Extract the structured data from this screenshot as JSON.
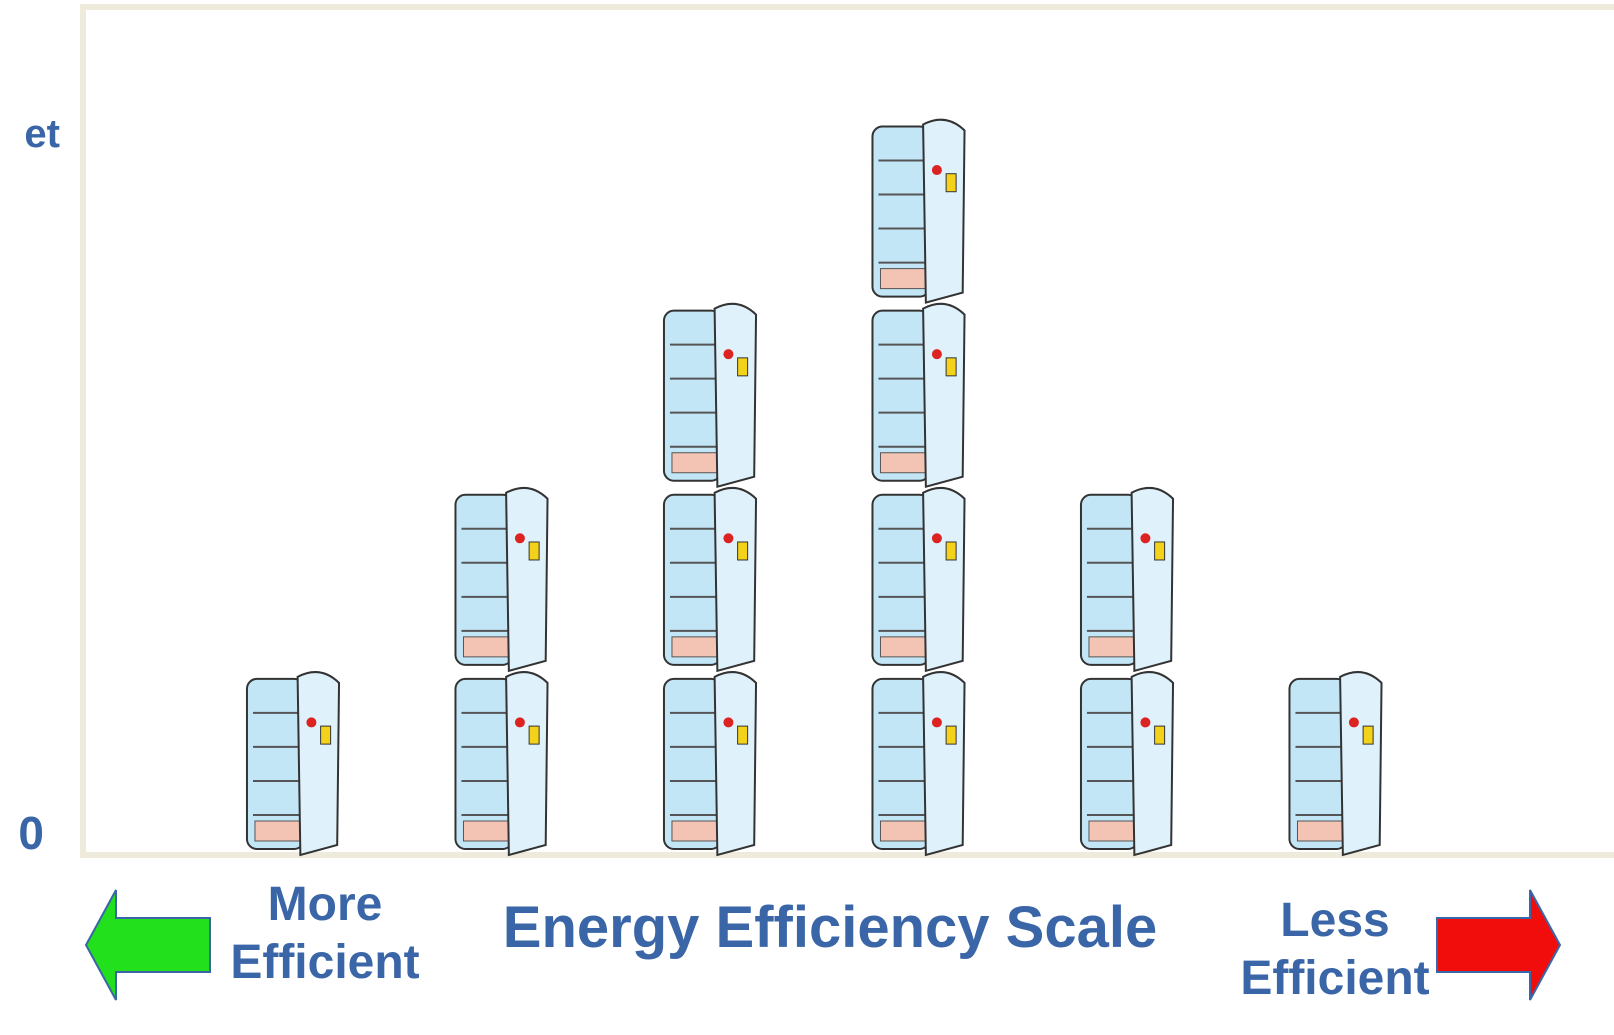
{
  "chart_data": {
    "type": "pictogram",
    "y_label": "et",
    "x_label": "Energy Efficiency Scale",
    "left_label": "More Efficient",
    "right_label": "Less Efficient",
    "categories": [
      null,
      null,
      null,
      null,
      null,
      null
    ],
    "values": [
      1,
      2,
      3,
      4,
      2,
      1
    ],
    "ylim": [
      0,
      4.6
    ],
    "yticks": [
      0
    ],
    "color": "#c3e6f7"
  }
}
